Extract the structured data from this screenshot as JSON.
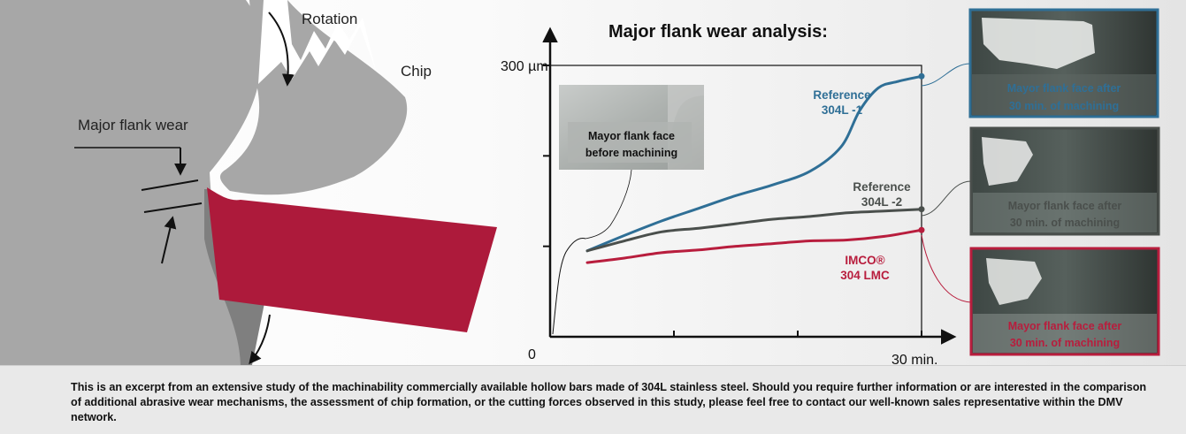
{
  "diagram": {
    "rotation_label": "Rotation",
    "chip_label": "Chip",
    "major_flank_wear_label": "Major flank wear"
  },
  "chart_data": {
    "type": "line",
    "title": "Major flank wear analysis:",
    "y_tick_top": "300 µm",
    "origin_label": "0",
    "x_end_label": "30 min.",
    "xlim": [
      0,
      30
    ],
    "ylim": [
      0,
      300
    ],
    "series": [
      {
        "name_line1": "Reference",
        "name_line2": "304L -1",
        "color": "#2f6f96",
        "x": [
          3,
          6,
          9,
          12,
          15,
          18,
          21,
          23.5,
          25,
          26.5,
          28,
          30
        ],
        "y": [
          95,
          112,
          128,
          142,
          156,
          168,
          183,
          210,
          250,
          275,
          282,
          288
        ]
      },
      {
        "name_line1": "Reference",
        "name_line2": "304L -2",
        "color": "#4a4f4c",
        "x": [
          3,
          6,
          9,
          12,
          15,
          18,
          21,
          24,
          27,
          30
        ],
        "y": [
          95,
          106,
          116,
          120,
          125,
          130,
          133,
          137,
          139,
          141
        ]
      },
      {
        "name_line1": "IMCO®",
        "name_line2": "304 LMC",
        "color": "#b81d3d",
        "x": [
          3,
          6,
          9,
          12,
          15,
          18,
          21,
          24,
          27,
          30
        ],
        "y": [
          82,
          87,
          93,
          96,
          100,
          103,
          106,
          107,
          111,
          118
        ]
      }
    ]
  },
  "photos": {
    "before": {
      "line1": "Mayor flank face",
      "line2": "before machining"
    },
    "after_blue": {
      "line1": "Mayor flank face after",
      "line2": "30 min. of machining",
      "color": "#2f6f96"
    },
    "after_gray": {
      "line1": "Mayor flank face after",
      "line2": "30 min. of machining",
      "color": "#4a4f4c"
    },
    "after_red": {
      "line1": "Mayor flank face after",
      "line2": "30 min. of machining",
      "color": "#b81d3d"
    }
  },
  "footer": {
    "text": "This is an excerpt from an extensive study of the machinability commercially available hollow bars made of 304L stainless steel. Should you require further information or are interested in the comparison of additional abrasive wear mechanisms, the assessment of chip formation, or the cutting forces observed in this study, please feel free to contact our well-known sales representative within the DMV network."
  }
}
